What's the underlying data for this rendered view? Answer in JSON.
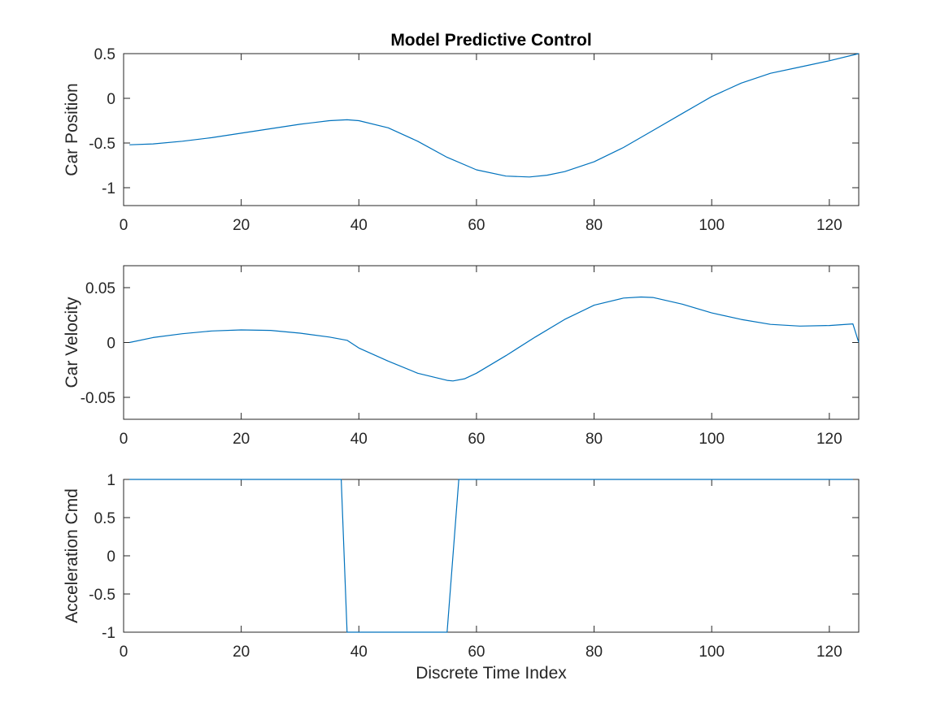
{
  "figure": {
    "title": "Model Predictive Control"
  },
  "chart_data": [
    {
      "type": "line",
      "title": "Model Predictive Control",
      "xlabel": "",
      "ylabel": "Car Position",
      "xlim": [
        0,
        125
      ],
      "ylim": [
        -1.2,
        0.5
      ],
      "xticks": [
        0,
        20,
        40,
        60,
        80,
        100,
        120
      ],
      "xtick_labels": [
        "0",
        "20",
        "40",
        "60",
        "80",
        "100",
        "120"
      ],
      "yticks": [
        0.5,
        0,
        -0.5,
        -1
      ],
      "ytick_labels": [
        "0.5",
        "0",
        "-0.5",
        "-1"
      ],
      "grid": false,
      "color": "#0072BD",
      "series": [
        {
          "x": [
            1,
            5,
            10,
            15,
            20,
            25,
            30,
            35,
            38,
            40,
            45,
            50,
            55,
            60,
            65,
            69,
            72,
            75,
            80,
            85,
            90,
            95,
            100,
            105,
            110,
            115,
            120,
            125
          ],
          "y": [
            -0.52,
            -0.51,
            -0.48,
            -0.44,
            -0.39,
            -0.34,
            -0.29,
            -0.25,
            -0.24,
            -0.25,
            -0.33,
            -0.48,
            -0.66,
            -0.8,
            -0.87,
            -0.88,
            -0.86,
            -0.82,
            -0.71,
            -0.55,
            -0.36,
            -0.17,
            0.02,
            0.17,
            0.28,
            0.35,
            0.42,
            0.5
          ]
        }
      ]
    },
    {
      "type": "line",
      "title": "",
      "xlabel": "",
      "ylabel": "Car Velocity",
      "xlim": [
        0,
        125
      ],
      "ylim": [
        -0.07,
        0.07
      ],
      "xticks": [
        0,
        20,
        40,
        60,
        80,
        100,
        120
      ],
      "xtick_labels": [
        "0",
        "20",
        "40",
        "60",
        "80",
        "100",
        "120"
      ],
      "yticks": [
        0.05,
        0,
        -0.05
      ],
      "ytick_labels": [
        "0.05",
        "0",
        "-0.05"
      ],
      "grid": false,
      "color": "#0072BD",
      "series": [
        {
          "x": [
            1,
            5,
            10,
            15,
            20,
            25,
            30,
            35,
            38,
            40,
            45,
            50,
            55,
            56,
            58,
            60,
            65,
            70,
            75,
            80,
            85,
            88,
            90,
            95,
            100,
            105,
            110,
            115,
            120,
            124,
            125
          ],
          "y": [
            0,
            0.0045,
            0.008,
            0.0105,
            0.0115,
            0.011,
            0.0085,
            0.005,
            0.002,
            -0.005,
            -0.017,
            -0.028,
            -0.0345,
            -0.035,
            -0.033,
            -0.028,
            -0.012,
            0.005,
            0.021,
            0.034,
            0.0405,
            0.0415,
            0.041,
            0.035,
            0.027,
            0.021,
            0.0165,
            0.015,
            0.0155,
            0.017,
            0
          ]
        }
      ]
    },
    {
      "type": "line",
      "title": "",
      "xlabel": "Discrete Time Index",
      "ylabel": "Acceleration Cmd",
      "xlim": [
        0,
        125
      ],
      "ylim": [
        -1,
        1
      ],
      "xticks": [
        0,
        20,
        40,
        60,
        80,
        100,
        120
      ],
      "xtick_labels": [
        "0",
        "20",
        "40",
        "60",
        "80",
        "100",
        "120"
      ],
      "yticks": [
        1,
        0.5,
        0,
        -0.5,
        -1
      ],
      "ytick_labels": [
        "1",
        "0.5",
        "0",
        "-0.5",
        "-1"
      ],
      "grid": false,
      "color": "#0072BD",
      "series": [
        {
          "x": [
            1,
            37,
            38,
            55,
            57,
            124
          ],
          "y": [
            1,
            1,
            -1,
            -1,
            1,
            1
          ]
        }
      ]
    }
  ]
}
